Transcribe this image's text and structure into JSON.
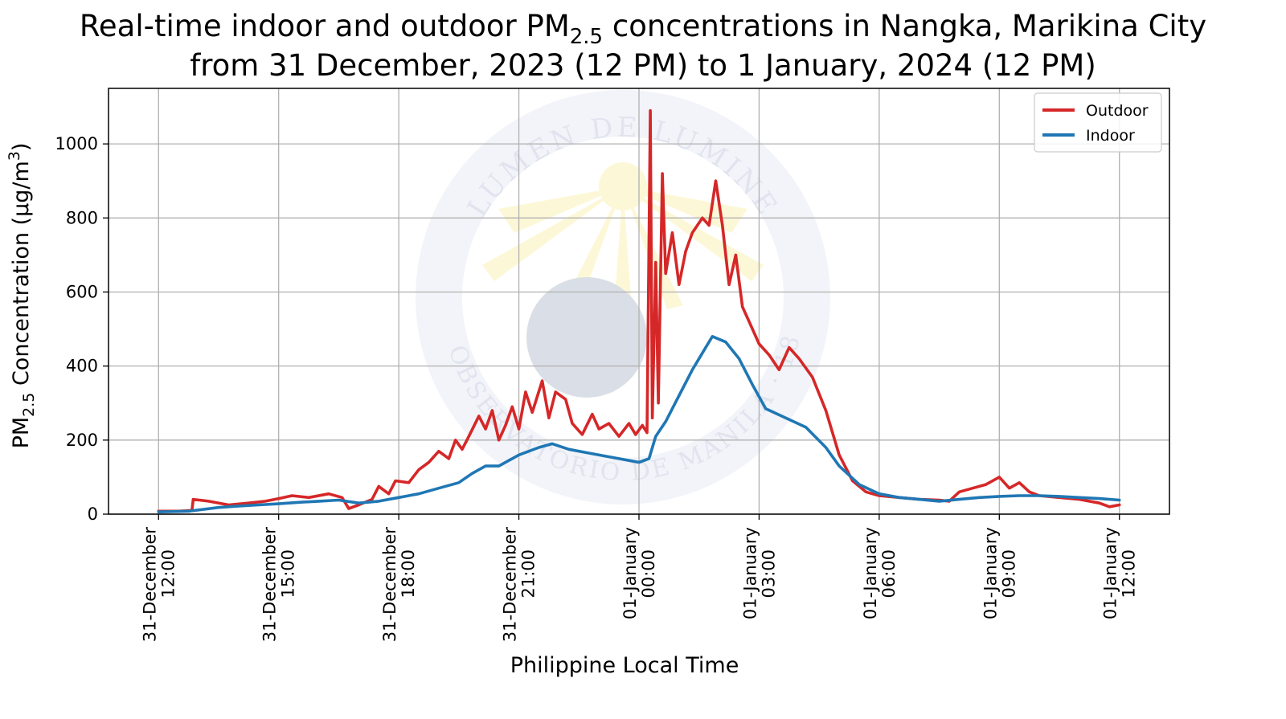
{
  "chart_data": {
    "type": "line",
    "title_line1_main": "Real-time indoor and outdoor PM",
    "title_line1_sub": "2.5",
    "title_line1_rest": " concentrations in Nangka, Marikina City",
    "title_line2": "from 31 December, 2023 (12 PM) to 1 January, 2024 (12 PM)",
    "xlabel": "Philippine Local Time",
    "ylabel_main": "PM",
    "ylabel_sub": "2.5",
    "ylabel_rest": " Concentration (μg/m",
    "ylabel_sup": "3",
    "ylabel_close": ")",
    "xlim": [
      "2023-12-31 10:45",
      "2024-01-01 13:15"
    ],
    "ylim": [
      0,
      1150
    ],
    "yticks": [
      0,
      200,
      400,
      600,
      800,
      1000
    ],
    "xticks": [
      {
        "t": "2023-12-31 12:00",
        "line1": "31-December",
        "line2": "12:00"
      },
      {
        "t": "2023-12-31 15:00",
        "line1": "31-December",
        "line2": "15:00"
      },
      {
        "t": "2023-12-31 18:00",
        "line1": "31-December",
        "line2": "18:00"
      },
      {
        "t": "2023-12-31 21:00",
        "line1": "31-December",
        "line2": "21:00"
      },
      {
        "t": "2024-01-01 00:00",
        "line1": "01-January",
        "line2": "00:00"
      },
      {
        "t": "2024-01-01 03:00",
        "line1": "01-January",
        "line2": "03:00"
      },
      {
        "t": "2024-01-01 06:00",
        "line1": "01-January",
        "line2": "06:00"
      },
      {
        "t": "2024-01-01 09:00",
        "line1": "01-January",
        "line2": "09:00"
      },
      {
        "t": "2024-01-01 12:00",
        "line1": "01-January",
        "line2": "12:00"
      }
    ],
    "grid": true,
    "legend_position": "top-right",
    "watermark_text_top": "LUMEN DE LUMINE",
    "watermark_text_bottom": "EL OBSERVATORIO DE MANILA · 1865",
    "series": [
      {
        "name": "Outdoor",
        "color": "#d62728",
        "points": [
          [
            "2023-12-31 12:00",
            8
          ],
          [
            "2023-12-31 12:30",
            8
          ],
          [
            "2023-12-31 12:50",
            10
          ],
          [
            "2023-12-31 12:52",
            40
          ],
          [
            "2023-12-31 13:15",
            35
          ],
          [
            "2023-12-31 13:45",
            25
          ],
          [
            "2023-12-31 14:15",
            30
          ],
          [
            "2023-12-31 14:40",
            35
          ],
          [
            "2023-12-31 15:00",
            42
          ],
          [
            "2023-12-31 15:20",
            50
          ],
          [
            "2023-12-31 15:45",
            45
          ],
          [
            "2023-12-31 16:15",
            55
          ],
          [
            "2023-12-31 16:35",
            45
          ],
          [
            "2023-12-31 16:45",
            15
          ],
          [
            "2023-12-31 17:00",
            25
          ],
          [
            "2023-12-31 17:20",
            40
          ],
          [
            "2023-12-31 17:30",
            75
          ],
          [
            "2023-12-31 17:45",
            55
          ],
          [
            "2023-12-31 17:55",
            90
          ],
          [
            "2023-12-31 18:15",
            85
          ],
          [
            "2023-12-31 18:30",
            120
          ],
          [
            "2023-12-31 18:45",
            140
          ],
          [
            "2023-12-31 19:00",
            170
          ],
          [
            "2023-12-31 19:15",
            150
          ],
          [
            "2023-12-31 19:25",
            200
          ],
          [
            "2023-12-31 19:35",
            175
          ],
          [
            "2023-12-31 19:45",
            210
          ],
          [
            "2023-12-31 20:00",
            265
          ],
          [
            "2023-12-31 20:10",
            230
          ],
          [
            "2023-12-31 20:20",
            280
          ],
          [
            "2023-12-31 20:30",
            200
          ],
          [
            "2023-12-31 20:40",
            240
          ],
          [
            "2023-12-31 20:50",
            290
          ],
          [
            "2023-12-31 21:00",
            230
          ],
          [
            "2023-12-31 21:10",
            330
          ],
          [
            "2023-12-31 21:20",
            275
          ],
          [
            "2023-12-31 21:35",
            360
          ],
          [
            "2023-12-31 21:45",
            260
          ],
          [
            "2023-12-31 21:55",
            330
          ],
          [
            "2023-12-31 22:10",
            310
          ],
          [
            "2023-12-31 22:20",
            245
          ],
          [
            "2023-12-31 22:35",
            215
          ],
          [
            "2023-12-31 22:50",
            270
          ],
          [
            "2023-12-31 23:00",
            230
          ],
          [
            "2023-12-31 23:15",
            245
          ],
          [
            "2023-12-31 23:30",
            210
          ],
          [
            "2023-12-31 23:45",
            245
          ],
          [
            "2023-12-31 23:55",
            215
          ],
          [
            "2024-01-01 00:05",
            240
          ],
          [
            "2024-01-01 00:12",
            220
          ],
          [
            "2024-01-01 00:17",
            1090
          ],
          [
            "2024-01-01 00:20",
            260
          ],
          [
            "2024-01-01 00:25",
            680
          ],
          [
            "2024-01-01 00:29",
            300
          ],
          [
            "2024-01-01 00:35",
            920
          ],
          [
            "2024-01-01 00:40",
            650
          ],
          [
            "2024-01-01 00:50",
            760
          ],
          [
            "2024-01-01 01:00",
            620
          ],
          [
            "2024-01-01 01:10",
            710
          ],
          [
            "2024-01-01 01:20",
            760
          ],
          [
            "2024-01-01 01:35",
            800
          ],
          [
            "2024-01-01 01:45",
            780
          ],
          [
            "2024-01-01 01:55",
            900
          ],
          [
            "2024-01-01 02:05",
            780
          ],
          [
            "2024-01-01 02:15",
            620
          ],
          [
            "2024-01-01 02:25",
            700
          ],
          [
            "2024-01-01 02:35",
            560
          ],
          [
            "2024-01-01 02:45",
            520
          ],
          [
            "2024-01-01 03:00",
            460
          ],
          [
            "2024-01-01 03:15",
            430
          ],
          [
            "2024-01-01 03:30",
            390
          ],
          [
            "2024-01-01 03:45",
            450
          ],
          [
            "2024-01-01 04:00",
            420
          ],
          [
            "2024-01-01 04:20",
            370
          ],
          [
            "2024-01-01 04:40",
            280
          ],
          [
            "2024-01-01 05:00",
            160
          ],
          [
            "2024-01-01 05:20",
            90
          ],
          [
            "2024-01-01 05:40",
            60
          ],
          [
            "2024-01-01 06:00",
            50
          ],
          [
            "2024-01-01 06:30",
            45
          ],
          [
            "2024-01-01 07:00",
            40
          ],
          [
            "2024-01-01 07:30",
            38
          ],
          [
            "2024-01-01 07:45",
            35
          ],
          [
            "2024-01-01 08:00",
            60
          ],
          [
            "2024-01-01 08:20",
            70
          ],
          [
            "2024-01-01 08:40",
            80
          ],
          [
            "2024-01-01 09:00",
            100
          ],
          [
            "2024-01-01 09:15",
            70
          ],
          [
            "2024-01-01 09:30",
            85
          ],
          [
            "2024-01-01 09:45",
            60
          ],
          [
            "2024-01-01 10:00",
            50
          ],
          [
            "2024-01-01 10:30",
            45
          ],
          [
            "2024-01-01 11:00",
            40
          ],
          [
            "2024-01-01 11:30",
            30
          ],
          [
            "2024-01-01 11:45",
            20
          ],
          [
            "2024-01-01 12:00",
            25
          ]
        ]
      },
      {
        "name": "Indoor",
        "color": "#1f77b4",
        "points": [
          [
            "2023-12-31 12:00",
            6
          ],
          [
            "2023-12-31 12:45",
            8
          ],
          [
            "2023-12-31 13:30",
            18
          ],
          [
            "2023-12-31 14:00",
            22
          ],
          [
            "2023-12-31 14:30",
            25
          ],
          [
            "2023-12-31 15:00",
            28
          ],
          [
            "2023-12-31 15:30",
            32
          ],
          [
            "2023-12-31 16:00",
            35
          ],
          [
            "2023-12-31 16:30",
            38
          ],
          [
            "2023-12-31 17:00",
            30
          ],
          [
            "2023-12-31 17:30",
            35
          ],
          [
            "2023-12-31 18:00",
            45
          ],
          [
            "2023-12-31 18:30",
            55
          ],
          [
            "2023-12-31 19:00",
            70
          ],
          [
            "2023-12-31 19:30",
            85
          ],
          [
            "2023-12-31 19:50",
            110
          ],
          [
            "2023-12-31 20:10",
            130
          ],
          [
            "2023-12-31 20:30",
            130
          ],
          [
            "2023-12-31 21:00",
            160
          ],
          [
            "2023-12-31 21:30",
            180
          ],
          [
            "2023-12-31 21:50",
            190
          ],
          [
            "2023-12-31 22:15",
            175
          ],
          [
            "2023-12-31 22:45",
            165
          ],
          [
            "2023-12-31 23:15",
            155
          ],
          [
            "2023-12-31 23:45",
            145
          ],
          [
            "2024-01-01 00:00",
            140
          ],
          [
            "2024-01-01 00:15",
            150
          ],
          [
            "2024-01-01 00:25",
            210
          ],
          [
            "2024-01-01 00:40",
            250
          ],
          [
            "2024-01-01 01:00",
            320
          ],
          [
            "2024-01-01 01:20",
            390
          ],
          [
            "2024-01-01 01:40",
            450
          ],
          [
            "2024-01-01 01:50",
            480
          ],
          [
            "2024-01-01 02:10",
            465
          ],
          [
            "2024-01-01 02:30",
            420
          ],
          [
            "2024-01-01 02:50",
            350
          ],
          [
            "2024-01-01 03:10",
            285
          ],
          [
            "2024-01-01 03:40",
            260
          ],
          [
            "2024-01-01 04:10",
            235
          ],
          [
            "2024-01-01 04:40",
            180
          ],
          [
            "2024-01-01 05:00",
            130
          ],
          [
            "2024-01-01 05:30",
            80
          ],
          [
            "2024-01-01 06:00",
            55
          ],
          [
            "2024-01-01 06:30",
            45
          ],
          [
            "2024-01-01 07:00",
            40
          ],
          [
            "2024-01-01 07:30",
            35
          ],
          [
            "2024-01-01 08:00",
            40
          ],
          [
            "2024-01-01 08:30",
            45
          ],
          [
            "2024-01-01 09:00",
            48
          ],
          [
            "2024-01-01 09:30",
            50
          ],
          [
            "2024-01-01 10:00",
            50
          ],
          [
            "2024-01-01 10:30",
            48
          ],
          [
            "2024-01-01 11:00",
            45
          ],
          [
            "2024-01-01 11:30",
            42
          ],
          [
            "2024-01-01 12:00",
            38
          ]
        ]
      }
    ]
  }
}
